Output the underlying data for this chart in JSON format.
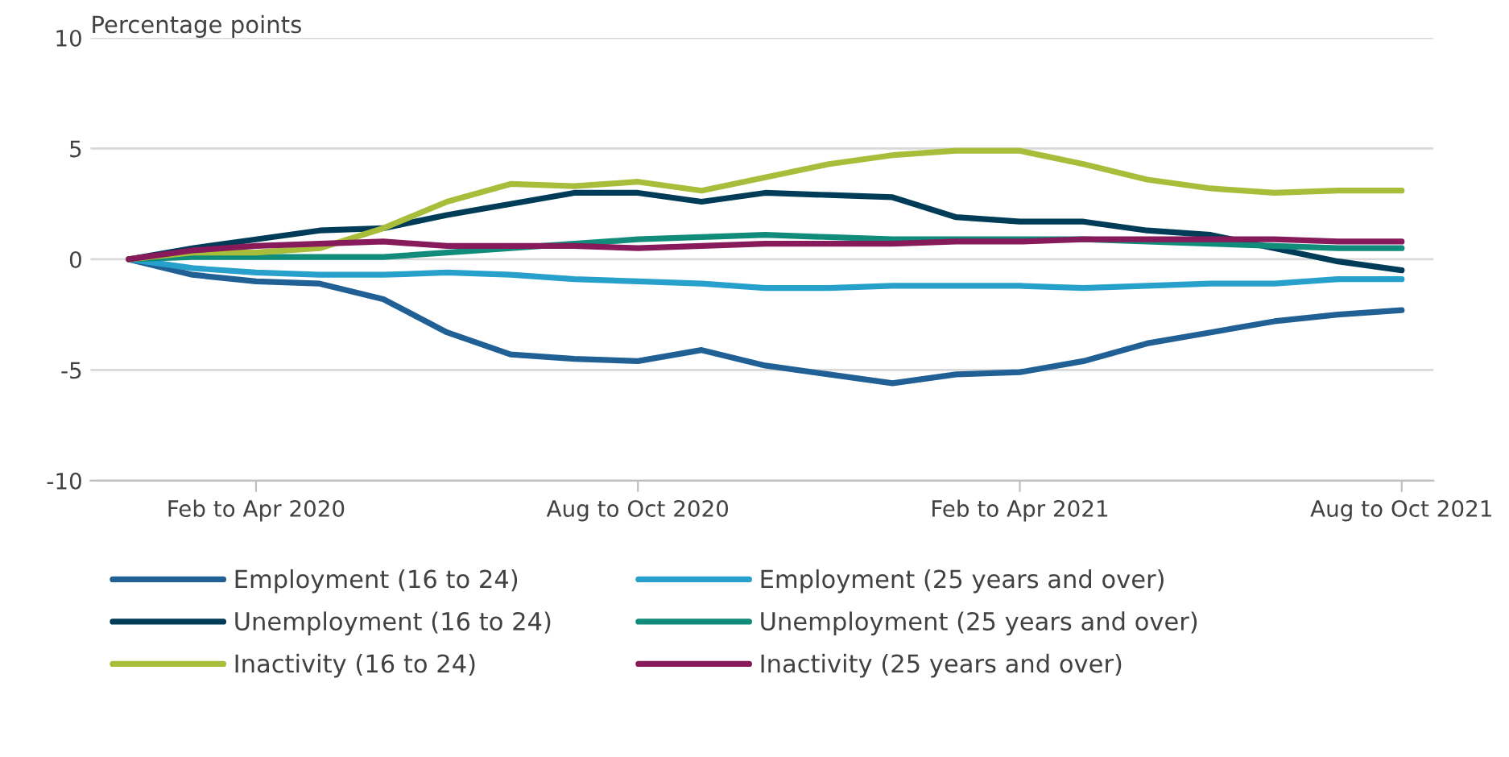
{
  "chart_data": {
    "type": "line",
    "ylabel": "Percentage points",
    "categories": [
      null,
      null,
      "Feb to Apr 2020",
      null,
      null,
      null,
      null,
      null,
      "Aug to Oct 2020",
      null,
      null,
      null,
      null,
      null,
      "Feb to Apr 2021",
      null,
      null,
      null,
      null,
      null,
      "Aug to Oct 2021"
    ],
    "series": [
      {
        "name": "Employment (16 to 24)",
        "color": "#206095",
        "values": [
          0,
          -0.7,
          -1.0,
          -1.1,
          -1.8,
          -3.3,
          -4.3,
          -4.5,
          -4.6,
          -4.1,
          -4.8,
          -5.2,
          -5.6,
          -5.2,
          -5.1,
          -4.6,
          -3.8,
          -3.3,
          -2.8,
          -2.5,
          -2.3
        ]
      },
      {
        "name": "Employment (25 years and over)",
        "color": "#27a0cc",
        "values": [
          0,
          -0.4,
          -0.6,
          -0.7,
          -0.7,
          -0.6,
          -0.7,
          -0.9,
          -1.0,
          -1.1,
          -1.3,
          -1.3,
          -1.2,
          -1.2,
          -1.2,
          -1.3,
          -1.2,
          -1.1,
          -1.1,
          -0.9,
          -0.9
        ]
      },
      {
        "name": "Unemployment (16 to 24)",
        "color": "#003c57",
        "values": [
          0,
          0.5,
          0.9,
          1.3,
          1.4,
          2.0,
          2.5,
          3.0,
          3.0,
          2.6,
          3.0,
          2.9,
          2.8,
          1.9,
          1.7,
          1.7,
          1.3,
          1.1,
          0.5,
          -0.1,
          -0.5
        ]
      },
      {
        "name": "Unemployment (25 years and over)",
        "color": "#118c7b",
        "values": [
          0,
          0.1,
          0.1,
          0.1,
          0.1,
          0.3,
          0.5,
          0.7,
          0.9,
          1.0,
          1.1,
          1.0,
          0.9,
          0.9,
          0.9,
          0.9,
          0.8,
          0.7,
          0.6,
          0.5,
          0.5
        ]
      },
      {
        "name": "Inactivity (16 to 24)",
        "color": "#a8bd3a",
        "values": [
          0,
          0.3,
          0.3,
          0.5,
          1.4,
          2.6,
          3.4,
          3.3,
          3.5,
          3.1,
          3.7,
          4.3,
          4.7,
          4.9,
          4.9,
          4.3,
          3.6,
          3.2,
          3.0,
          3.1,
          3.1
        ]
      },
      {
        "name": "Inactivity (25 years and over)",
        "color": "#871a5b",
        "values": [
          0,
          0.4,
          0.6,
          0.7,
          0.8,
          0.6,
          0.6,
          0.6,
          0.5,
          0.6,
          0.7,
          0.7,
          0.7,
          0.8,
          0.8,
          0.9,
          0.9,
          0.9,
          0.9,
          0.8,
          0.8
        ]
      }
    ],
    "ylim": [
      -10,
      10
    ],
    "yticks": [
      -10,
      -5,
      0,
      5,
      10
    ],
    "grid": "y",
    "legend": "bottom",
    "marker": "none",
    "line_style": "solid"
  }
}
